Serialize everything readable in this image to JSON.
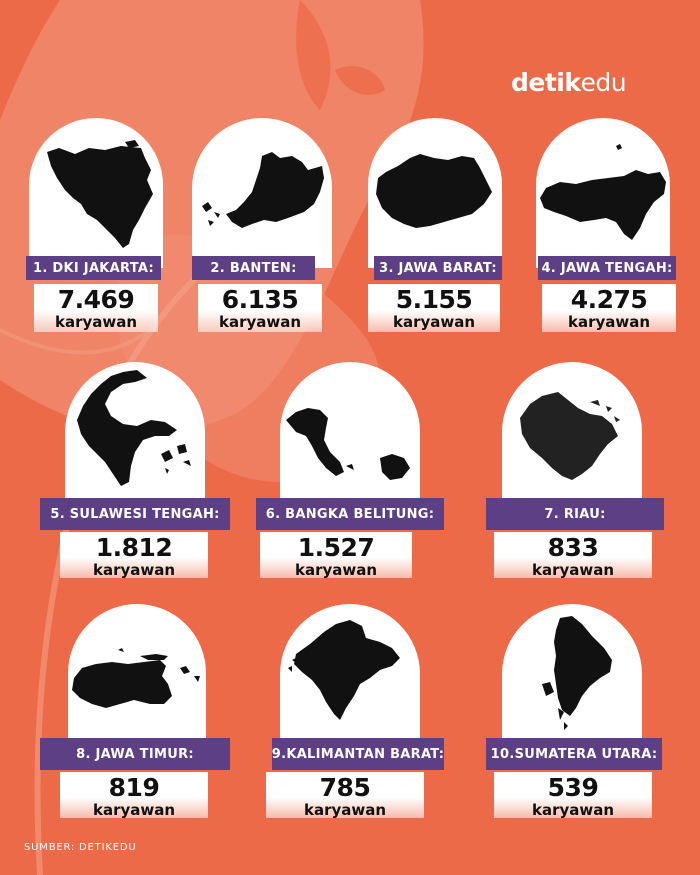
{
  "brand": {
    "part1": "detik",
    "part2": "edu"
  },
  "source": "SUMBER:  DETIKEDU",
  "items": [
    {
      "label": "1. DKI JAKARTA:",
      "value": "7.469",
      "unit": "karyawan",
      "icon": "dki-jakarta-map-icon"
    },
    {
      "label": "2. BANTEN:",
      "value": "6.135",
      "unit": "karyawan",
      "icon": "banten-map-icon"
    },
    {
      "label": "3. JAWA BARAT:",
      "value": "5.155",
      "unit": "karyawan",
      "icon": "jawa-barat-map-icon"
    },
    {
      "label": "4. JAWA TENGAH:",
      "value": "4.275",
      "unit": "karyawan",
      "icon": "jawa-tengah-map-icon"
    },
    {
      "label": "5. SULAWESI TENGAH:",
      "value": "1.812",
      "unit": "karyawan",
      "icon": "sulawesi-tengah-map-icon"
    },
    {
      "label": "6. BANGKA BELITUNG:",
      "value": "1.527",
      "unit": "karyawan",
      "icon": "bangka-belitung-map-icon"
    },
    {
      "label": "7. RIAU:",
      "value": "833",
      "unit": "karyawan",
      "icon": "riau-map-icon"
    },
    {
      "label": "8. JAWA TIMUR:",
      "value": "819",
      "unit": "karyawan",
      "icon": "jawa-timur-map-icon"
    },
    {
      "label": "9.KALIMANTAN BARAT:",
      "value": "785",
      "unit": "karyawan",
      "icon": "kalimantan-barat-map-icon"
    },
    {
      "label": "10.SUMATERA UTARA:",
      "value": "539",
      "unit": "karyawan",
      "icon": "sumatera-utara-map-icon"
    }
  ]
}
